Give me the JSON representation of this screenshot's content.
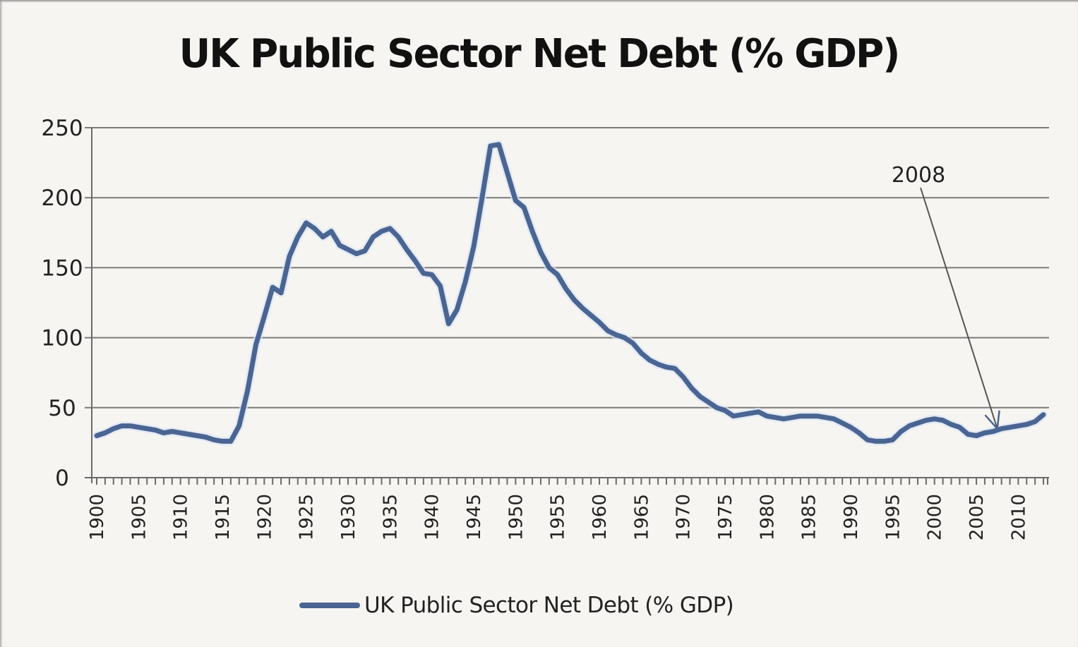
{
  "chart_data": {
    "type": "line",
    "title": "UK Public Sector Net Debt (% GDP)",
    "xlabel": "",
    "ylabel": "",
    "xlim": [
      1900,
      2013
    ],
    "ylim": [
      0,
      250
    ],
    "yticks": [
      0,
      50,
      100,
      150,
      200,
      250
    ],
    "xticks": [
      1900,
      1905,
      1910,
      1915,
      1920,
      1925,
      1930,
      1935,
      1940,
      1945,
      1950,
      1955,
      1960,
      1965,
      1970,
      1975,
      1980,
      1985,
      1990,
      1995,
      2000,
      2005,
      2010
    ],
    "grid": "horizontal",
    "legend_position": "bottom",
    "colors": {
      "line": "#4a6592",
      "grid": "#7a7a7a",
      "axis": "#6a6a6a",
      "annotation": "#555555"
    },
    "annotations": [
      {
        "text": "2008",
        "x": 2008,
        "y": 36,
        "type": "arrow"
      }
    ],
    "series": [
      {
        "name": "UK Public Sector Net Debt (% GDP)",
        "x": [
          1900,
          1901,
          1902,
          1903,
          1904,
          1905,
          1906,
          1907,
          1908,
          1909,
          1910,
          1911,
          1912,
          1913,
          1914,
          1915,
          1916,
          1917,
          1918,
          1919,
          1920,
          1921,
          1922,
          1923,
          1924,
          1925,
          1926,
          1927,
          1928,
          1929,
          1930,
          1931,
          1932,
          1933,
          1934,
          1935,
          1936,
          1937,
          1938,
          1939,
          1940,
          1941,
          1942,
          1943,
          1944,
          1945,
          1946,
          1947,
          1948,
          1949,
          1950,
          1951,
          1952,
          1953,
          1954,
          1955,
          1956,
          1957,
          1958,
          1959,
          1960,
          1961,
          1962,
          1963,
          1964,
          1965,
          1966,
          1967,
          1968,
          1969,
          1970,
          1971,
          1972,
          1973,
          1974,
          1975,
          1976,
          1977,
          1978,
          1979,
          1980,
          1981,
          1982,
          1983,
          1984,
          1985,
          1986,
          1987,
          1988,
          1989,
          1990,
          1991,
          1992,
          1993,
          1994,
          1995,
          1996,
          1997,
          1998,
          1999,
          2000,
          2001,
          2002,
          2003,
          2004,
          2005,
          2006,
          2007,
          2008,
          2009,
          2010,
          2011,
          2012,
          2013
        ],
        "values": [
          30,
          32,
          35,
          37,
          37,
          36,
          35,
          34,
          32,
          33,
          32,
          31,
          30,
          29,
          27,
          26,
          26,
          37,
          62,
          95,
          115,
          136,
          132,
          158,
          172,
          182,
          178,
          172,
          176,
          166,
          163,
          160,
          162,
          172,
          176,
          178,
          172,
          163,
          155,
          146,
          145,
          137,
          110,
          120,
          140,
          165,
          200,
          237,
          238,
          218,
          198,
          193,
          176,
          161,
          150,
          145,
          135,
          127,
          121,
          116,
          111,
          105,
          102,
          100,
          96,
          89,
          84,
          81,
          79,
          78,
          72,
          64,
          58,
          54,
          50,
          48,
          44,
          45,
          46,
          47,
          44,
          43,
          42,
          43,
          44,
          44,
          44,
          43,
          42,
          39,
          36,
          32,
          27,
          26,
          26,
          27,
          33,
          37,
          39,
          41,
          42,
          41,
          38,
          36,
          31,
          30,
          32,
          33,
          35,
          36,
          37,
          38,
          40,
          45
        ]
      }
    ]
  }
}
